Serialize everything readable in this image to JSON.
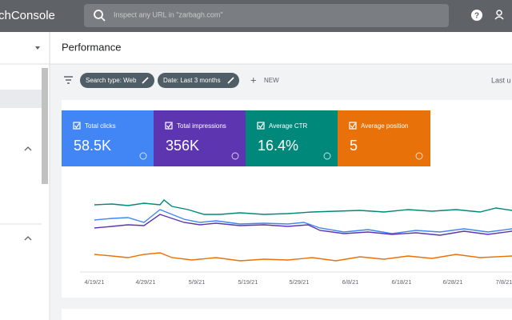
{
  "header": {
    "title": "chConsole",
    "search_placeholder": "Inspect any URL in \"zarbagh.com\""
  },
  "page": {
    "title": "Performance",
    "filters": [
      "Search type: Web",
      "Date: Last 3 months"
    ],
    "new_button": "NEW",
    "last_updated": "Last u"
  },
  "metrics": [
    {
      "label": "Total clicks",
      "value": "58.5K"
    },
    {
      "label": "Total impressions",
      "value": "356K"
    },
    {
      "label": "Average CTR",
      "value": "16.4%"
    },
    {
      "label": "Average position",
      "value": "5"
    }
  ],
  "chart": {
    "x_labels": [
      "4/19/21",
      "4/29/21",
      "5/9/21",
      "5/19/21",
      "5/29/21",
      "6/8/21",
      "6/18/21",
      "6/28/21",
      "7/8/21"
    ]
  }
}
